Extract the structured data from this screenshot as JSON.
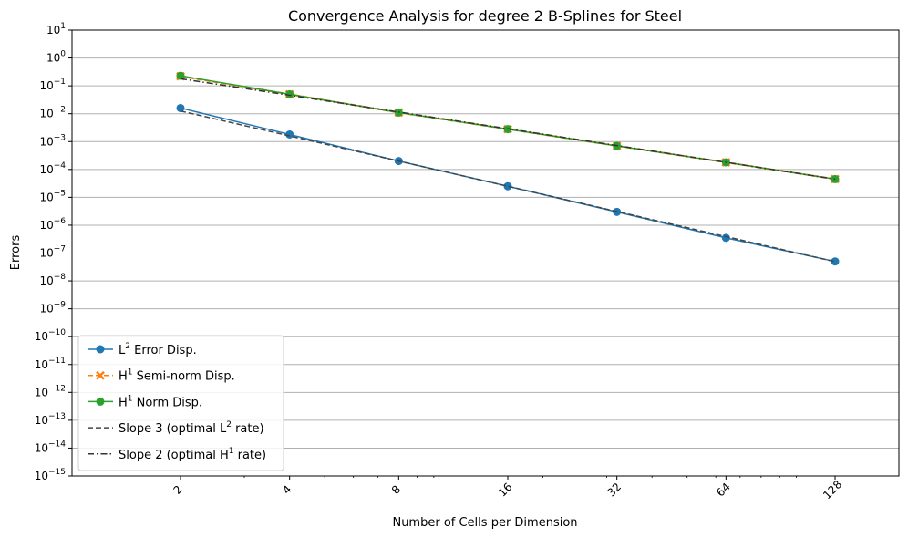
{
  "chart_data": {
    "type": "line",
    "title": "Convergence Analysis for degree 2 B-Splines for Steel",
    "xlabel": "Number of Cells per Dimension",
    "ylabel": "Errors",
    "x_scale": "log2",
    "y_scale": "log10",
    "x": [
      2,
      4,
      8,
      16,
      32,
      64,
      128
    ],
    "x_tick_labels": [
      "2",
      "4",
      "8",
      "16",
      "32",
      "64",
      "128"
    ],
    "ylim": [
      1e-15,
      10
    ],
    "y_tick_exponents": [
      1,
      0,
      -1,
      -2,
      -3,
      -4,
      -5,
      -6,
      -7,
      -8,
      -9,
      -10,
      -11,
      -12,
      -13,
      -14,
      -15
    ],
    "grid": "horizontal",
    "legend_position": "lower-left",
    "series": [
      {
        "name": "L2 Error Disp.",
        "legend_base": "L",
        "legend_sup": "2",
        "legend_rest": " Error Disp.",
        "color": "#1f77b4",
        "style": "solid",
        "marker": "circle",
        "values": [
          0.016,
          0.0018,
          0.0002,
          2.5e-05,
          3e-06,
          3.5e-07,
          5e-08
        ]
      },
      {
        "name": "H1 Semi-norm Disp.",
        "legend_base": "H",
        "legend_sup": "1",
        "legend_rest": " Semi-norm Disp.",
        "color": "#ff7f0e",
        "style": "dashed",
        "marker": "x",
        "values": [
          0.22,
          0.05,
          0.011,
          0.0028,
          0.0007,
          0.00018,
          4.5e-05
        ]
      },
      {
        "name": "H1 Norm Disp.",
        "legend_base": "H",
        "legend_sup": "1",
        "legend_rest": " Norm Disp.",
        "color": "#2ca02c",
        "style": "solid",
        "marker": "circle",
        "values": [
          0.23,
          0.05,
          0.011,
          0.0028,
          0.0007,
          0.00018,
          4.5e-05
        ]
      },
      {
        "name": "Slope 3 (optimal L2 rate)",
        "legend_base": "Slope 3 (optimal L",
        "legend_sup": "2",
        "legend_rest": " rate)",
        "color": "#444444",
        "style": "dashed",
        "marker": "none",
        "values": [
          0.0125,
          0.0016,
          0.0002,
          2.5e-05,
          3.1e-06,
          3.9e-07,
          4.9e-08
        ]
      },
      {
        "name": "Slope 2 (optimal H1 rate)",
        "legend_base": "Slope 2 (optimal H",
        "legend_sup": "1",
        "legend_rest": " rate)",
        "color": "#333333",
        "style": "dashdot",
        "marker": "none",
        "values": [
          0.18,
          0.046,
          0.0115,
          0.0029,
          0.00072,
          0.00018,
          4.5e-05
        ]
      }
    ]
  }
}
